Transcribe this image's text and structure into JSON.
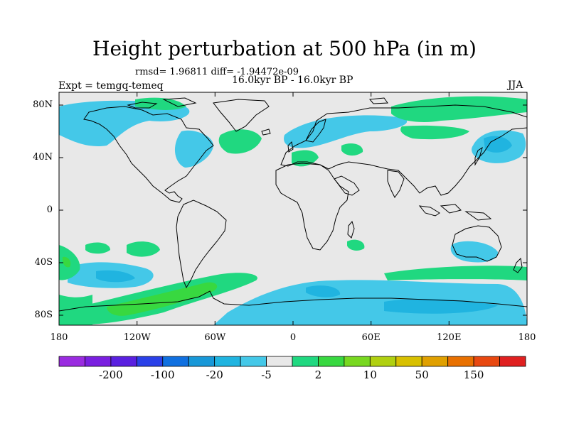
{
  "title": "Height perturbation at 500 hPa (in m)",
  "stats": "rmsd= 1.96811 diff= -1.94472e-09",
  "period": "16.0kyr BP - 16.0kyr BP",
  "experiment": "Expt = temgq-temeq",
  "season": "JJA",
  "map": {
    "lat_ticks": [
      "80N",
      "40N",
      "0",
      "40S",
      "80S"
    ],
    "lon_ticks": [
      "180",
      "120W",
      "60W",
      "0",
      "60E",
      "120E",
      "180"
    ],
    "background": "#e8e8e8"
  },
  "colorbar": {
    "colors": [
      "#9a2be0",
      "#7a1fe0",
      "#5a20e0",
      "#2a40e8",
      "#1070e0",
      "#1898d8",
      "#20b4e0",
      "#44c8e8",
      "#e8e8e8",
      "#20d880",
      "#38d840",
      "#78d820",
      "#b0d010",
      "#d8c000",
      "#e0a000",
      "#e87000",
      "#e84810",
      "#e02020"
    ],
    "labels": [
      "-200",
      "-100",
      "-20",
      "-5",
      "2",
      "10",
      "50",
      "150"
    ]
  }
}
